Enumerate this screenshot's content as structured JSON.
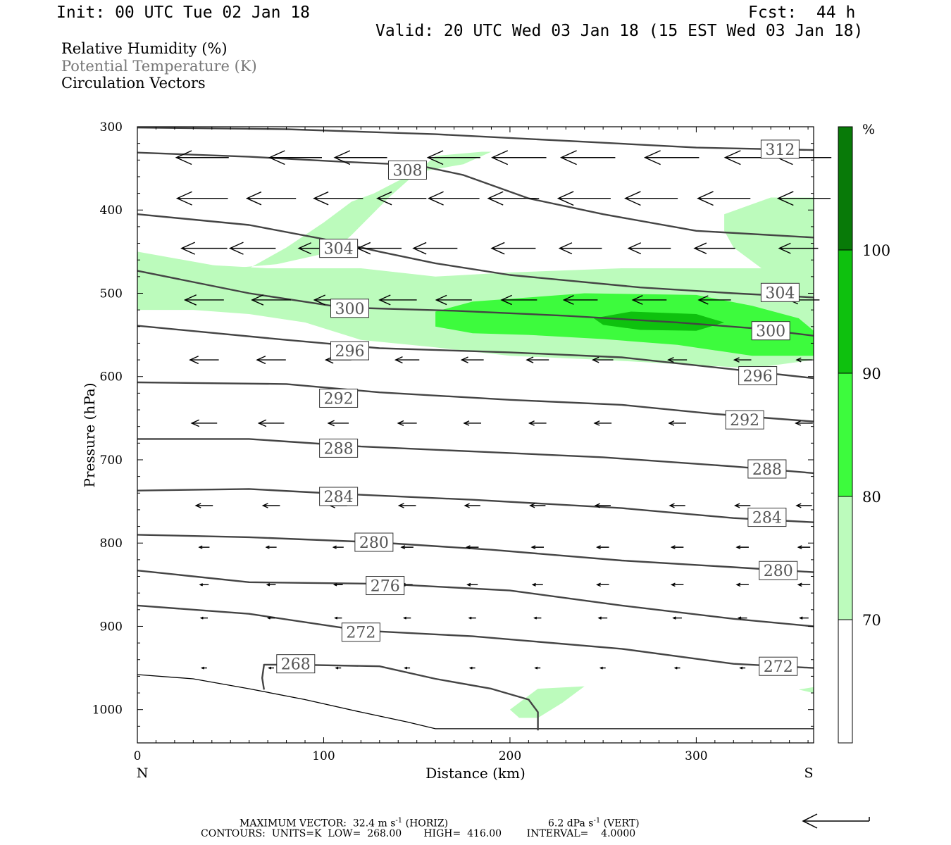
{
  "header": {
    "init": "Init: 00 UTC Tue 02 Jan 18",
    "fcst": "Fcst:  44 h",
    "valid": "Valid: 20 UTC Wed 03 Jan 18 (15 EST Wed 03 Jan 18)"
  },
  "legend_lines": {
    "rh": "Relative Humidity (%)",
    "theta": "Potential Temperature (K)",
    "vectors": "Circulation Vectors"
  },
  "footer": {
    "max_vector": "MAXIMUM VECTOR:  32.4 m s",
    "max_vector_horiz": " (HORIZ)",
    "max_vector_vert": "6.2 dPa s",
    "max_vector_vert_suffix": " (VERT)",
    "exp": "-1",
    "contours": "CONTOURS:  UNITS=K  LOW=  268.00       HIGH=  416.00        INTERVAL=    4.0000"
  },
  "colors": {
    "rh70": "#bcfbbc",
    "rh80": "#3dfb3d",
    "rh90": "#0ec10e",
    "rh100": "#087a08",
    "theta_line": "#444444"
  },
  "chart_data": {
    "type": "cross-section",
    "xlabel": "Distance (km)",
    "ylabel": "Pressure (hPa)",
    "xlim": [
      0,
      363
    ],
    "ylim": [
      1040,
      300
    ],
    "x_ticks": [
      "0",
      "100",
      "200",
      "300"
    ],
    "y_ticks": [
      "300",
      "400",
      "500",
      "600",
      "700",
      "800",
      "900",
      "1000"
    ],
    "x_end_labels": {
      "left": "N",
      "right": "S"
    },
    "colorbar": {
      "unit": "%",
      "levels": [
        "70",
        "80",
        "90",
        "100"
      ],
      "colors": [
        "#ffffff",
        "#bcfbbc",
        "#3dfb3d",
        "#0ec10e",
        "#087a08"
      ]
    },
    "terrain": [
      [
        0,
        958
      ],
      [
        30,
        963
      ],
      [
        60,
        975
      ],
      [
        90,
        988
      ],
      [
        120,
        1003
      ],
      [
        145,
        1015
      ],
      [
        160,
        1023
      ],
      [
        190,
        1023
      ],
      [
        215,
        1023
      ],
      [
        363,
        1023
      ]
    ],
    "theta_contours": [
      {
        "label": "312",
        "points": [
          [
            0,
            301
          ],
          [
            80,
            303
          ],
          [
            160,
            309
          ],
          [
            240,
            318
          ],
          [
            300,
            325
          ],
          [
            363,
            328
          ]
        ],
        "label_at": [
          [
            345,
            327
          ]
        ]
      },
      {
        "label": "308",
        "points": [
          [
            0,
            331
          ],
          [
            60,
            336
          ],
          [
            110,
            342
          ],
          [
            150,
            346
          ],
          [
            175,
            358
          ],
          [
            210,
            386
          ],
          [
            250,
            405
          ],
          [
            300,
            425
          ],
          [
            363,
            433
          ]
        ],
        "label_at": [
          [
            145,
            352
          ]
        ]
      },
      {
        "label": "304",
        "points": [
          [
            0,
            405
          ],
          [
            60,
            418
          ],
          [
            100,
            435
          ],
          [
            130,
            450
          ],
          [
            160,
            464
          ],
          [
            200,
            478
          ],
          [
            270,
            493
          ],
          [
            320,
            500
          ],
          [
            363,
            505
          ]
        ],
        "label_at": [
          [
            108,
            446
          ],
          [
            345,
            499
          ]
        ]
      },
      {
        "label": "300",
        "points": [
          [
            0,
            473
          ],
          [
            60,
            500
          ],
          [
            110,
            517
          ],
          [
            170,
            521
          ],
          [
            230,
            527
          ],
          [
            290,
            535
          ],
          [
            330,
            542
          ],
          [
            363,
            551
          ]
        ],
        "label_at": [
          [
            114,
            518
          ],
          [
            340,
            545
          ]
        ]
      },
      {
        "label": "296",
        "points": [
          [
            0,
            539
          ],
          [
            80,
            556
          ],
          [
            130,
            566
          ],
          [
            200,
            571
          ],
          [
            260,
            577
          ],
          [
            310,
            589
          ],
          [
            363,
            602
          ]
        ],
        "label_at": [
          [
            114,
            569
          ],
          [
            333,
            599
          ]
        ]
      },
      {
        "label": "292",
        "points": [
          [
            0,
            607
          ],
          [
            80,
            609
          ],
          [
            130,
            619
          ],
          [
            200,
            628
          ],
          [
            260,
            634
          ],
          [
            310,
            645
          ],
          [
            363,
            654
          ]
        ],
        "label_at": [
          [
            108,
            626
          ],
          [
            326,
            652
          ]
        ]
      },
      {
        "label": "288",
        "points": [
          [
            0,
            675
          ],
          [
            60,
            675
          ],
          [
            120,
            684
          ],
          [
            180,
            690
          ],
          [
            250,
            697
          ],
          [
            320,
            708
          ],
          [
            363,
            716
          ]
        ],
        "label_at": [
          [
            108,
            686
          ],
          [
            338,
            711
          ]
        ]
      },
      {
        "label": "284",
        "points": [
          [
            0,
            737
          ],
          [
            60,
            735
          ],
          [
            110,
            741
          ],
          [
            180,
            748
          ],
          [
            260,
            758
          ],
          [
            320,
            770
          ],
          [
            363,
            775
          ]
        ],
        "label_at": [
          [
            108,
            744
          ],
          [
            338,
            769
          ]
        ]
      },
      {
        "label": "280",
        "points": [
          [
            0,
            790
          ],
          [
            60,
            793
          ],
          [
            127,
            799
          ],
          [
            190,
            808
          ],
          [
            260,
            821
          ],
          [
            320,
            829
          ],
          [
            363,
            835
          ]
        ],
        "label_at": [
          [
            127,
            799
          ],
          [
            344,
            833
          ]
        ]
      },
      {
        "label": "276",
        "points": [
          [
            0,
            833
          ],
          [
            60,
            847
          ],
          [
            133,
            849
          ],
          [
            200,
            857
          ],
          [
            260,
            875
          ],
          [
            320,
            891
          ],
          [
            363,
            900
          ]
        ],
        "label_at": [
          [
            133,
            851
          ]
        ]
      },
      {
        "label": "272",
        "points": [
          [
            0,
            875
          ],
          [
            60,
            885
          ],
          [
            120,
            905
          ],
          [
            180,
            912
          ],
          [
            260,
            927
          ],
          [
            320,
            945
          ],
          [
            363,
            950
          ]
        ],
        "label_at": [
          [
            120,
            907
          ],
          [
            344,
            948
          ]
        ]
      },
      {
        "label": "268",
        "points": [
          [
            68,
            976
          ],
          [
            67,
            962
          ],
          [
            68,
            946
          ],
          [
            85,
            946
          ],
          [
            130,
            948
          ],
          [
            160,
            963
          ],
          [
            190,
            975
          ],
          [
            210,
            988
          ],
          [
            215,
            1003
          ],
          [
            215,
            1025
          ]
        ],
        "label_at": [
          [
            85,
            945
          ]
        ]
      }
    ],
    "vectors_rows": [
      {
        "p": 337,
        "xs": [
          35,
          85,
          120,
          170,
          205,
          242,
          287,
          330,
          358
        ],
        "lens": [
          31,
          31,
          31,
          31,
          32,
          32,
          32,
          32,
          32
        ]
      },
      {
        "p": 386,
        "xs": [
          35,
          72,
          108,
          142,
          170,
          202,
          240,
          276,
          315,
          358
        ],
        "lens": [
          30,
          29,
          29,
          29,
          30,
          30,
          31,
          31,
          31,
          31
        ]
      },
      {
        "p": 446,
        "xs": [
          36,
          62,
          98,
          130,
          160,
          202,
          238,
          275,
          310,
          355
        ],
        "lens": [
          27,
          27,
          25,
          26,
          26,
          26,
          25,
          25,
          24,
          23
        ]
      },
      {
        "p": 508,
        "xs": [
          36,
          72,
          105,
          140,
          170,
          205,
          238,
          275,
          310,
          358
        ],
        "lens": [
          23,
          23,
          22,
          22,
          21,
          21,
          20,
          20,
          19,
          18
        ]
      },
      {
        "p": 580,
        "xs": [
          36,
          72,
          108,
          145,
          180,
          215,
          250,
          290,
          325,
          358
        ],
        "lens": [
          17,
          17,
          15,
          14,
          13,
          13,
          12,
          11,
          10,
          9
        ]
      },
      {
        "p": 656,
        "xs": [
          36,
          72,
          108,
          145,
          180,
          215,
          250,
          290,
          325,
          358
        ],
        "lens": [
          15,
          15,
          12,
          11,
          10,
          10,
          10,
          10,
          10,
          10
        ]
      },
      {
        "p": 755,
        "xs": [
          36,
          72,
          108,
          145,
          180,
          215,
          250,
          290,
          325,
          358
        ],
        "lens": [
          10,
          10,
          10,
          10,
          9,
          9,
          9,
          9,
          9,
          9
        ]
      },
      {
        "p": 805,
        "xs": [
          36,
          72,
          108,
          145,
          180,
          215,
          250,
          290,
          325,
          358
        ],
        "lens": [
          6,
          6,
          6,
          7,
          7,
          7,
          7,
          7,
          7,
          7
        ]
      },
      {
        "p": 850,
        "xs": [
          36,
          72,
          108,
          145,
          180,
          215,
          250,
          290,
          325,
          358
        ],
        "lens": [
          5,
          5,
          5,
          6,
          6,
          6,
          7,
          7,
          7,
          7
        ]
      },
      {
        "p": 890,
        "xs": [
          36,
          72,
          108,
          145,
          180,
          215,
          250,
          290,
          325,
          358
        ],
        "lens": [
          4,
          4,
          4,
          4,
          4,
          4,
          5,
          5,
          5,
          5
        ]
      },
      {
        "p": 950,
        "xs": [
          36,
          72,
          108,
          145,
          180,
          215,
          250,
          290,
          325
        ],
        "lens": [
          3,
          3,
          3,
          3,
          3,
          3,
          3,
          3,
          3
        ]
      }
    ],
    "rh_fields": [
      {
        "level": "70",
        "polygons": [
          [
            [
              0,
              450
            ],
            [
              50,
              470
            ],
            [
              75,
              465
            ],
            [
              105,
              450
            ],
            [
              115,
              430
            ],
            [
              135,
              385
            ],
            [
              145,
              365
            ],
            [
              160,
              335
            ],
            [
              185,
              330
            ],
            [
              190,
              330
            ],
            [
              175,
              345
            ],
            [
              150,
              355
            ],
            [
              140,
              365
            ],
            [
              127,
              380
            ],
            [
              115,
              390
            ],
            [
              100,
              415
            ],
            [
              80,
              445
            ],
            [
              60,
              470
            ],
            [
              20,
              475
            ],
            [
              0,
              470
            ]
          ],
          [
            [
              0,
              460
            ],
            [
              30,
              465
            ],
            [
              70,
              470
            ],
            [
              120,
              470
            ],
            [
              160,
              480
            ],
            [
              200,
              475
            ],
            [
              260,
              470
            ],
            [
              300,
              470
            ],
            [
              330,
              470
            ],
            [
              363,
              470
            ],
            [
              363,
              580
            ],
            [
              330,
              590
            ],
            [
              290,
              585
            ],
            [
              250,
              580
            ],
            [
              200,
              575
            ],
            [
              160,
              565
            ],
            [
              120,
              556
            ],
            [
              90,
              535
            ],
            [
              60,
              525
            ],
            [
              30,
              520
            ],
            [
              0,
              520
            ]
          ],
          [
            [
              315,
              405
            ],
            [
              340,
              385
            ],
            [
              363,
              385
            ],
            [
              363,
              470
            ],
            [
              335,
              470
            ],
            [
              320,
              445
            ],
            [
              315,
              425
            ]
          ],
          [
            [
              200,
              1000
            ],
            [
              215,
              975
            ],
            [
              240,
              972
            ],
            [
              228,
              992
            ],
            [
              215,
              1010
            ],
            [
              205,
              1010
            ]
          ],
          [
            [
              355,
              976
            ],
            [
              363,
              973
            ],
            [
              363,
              980
            ]
          ]
        ]
      },
      {
        "level": "80",
        "polygons": [
          [
            [
              160,
              522
            ],
            [
              180,
              510
            ],
            [
              240,
              500
            ],
            [
              300,
              502
            ],
            [
              330,
              515
            ],
            [
              355,
              530
            ],
            [
              363,
              545
            ],
            [
              363,
              575
            ],
            [
              330,
              575
            ],
            [
              290,
              562
            ],
            [
              250,
              555
            ],
            [
              210,
              550
            ],
            [
              180,
              548
            ],
            [
              160,
              540
            ]
          ]
        ]
      },
      {
        "level": "90",
        "polygons": [
          [
            [
              245,
              530
            ],
            [
              265,
              522
            ],
            [
              300,
              525
            ],
            [
              315,
              535
            ],
            [
              300,
              545
            ],
            [
              270,
              544
            ],
            [
              250,
              538
            ]
          ]
        ]
      }
    ]
  }
}
